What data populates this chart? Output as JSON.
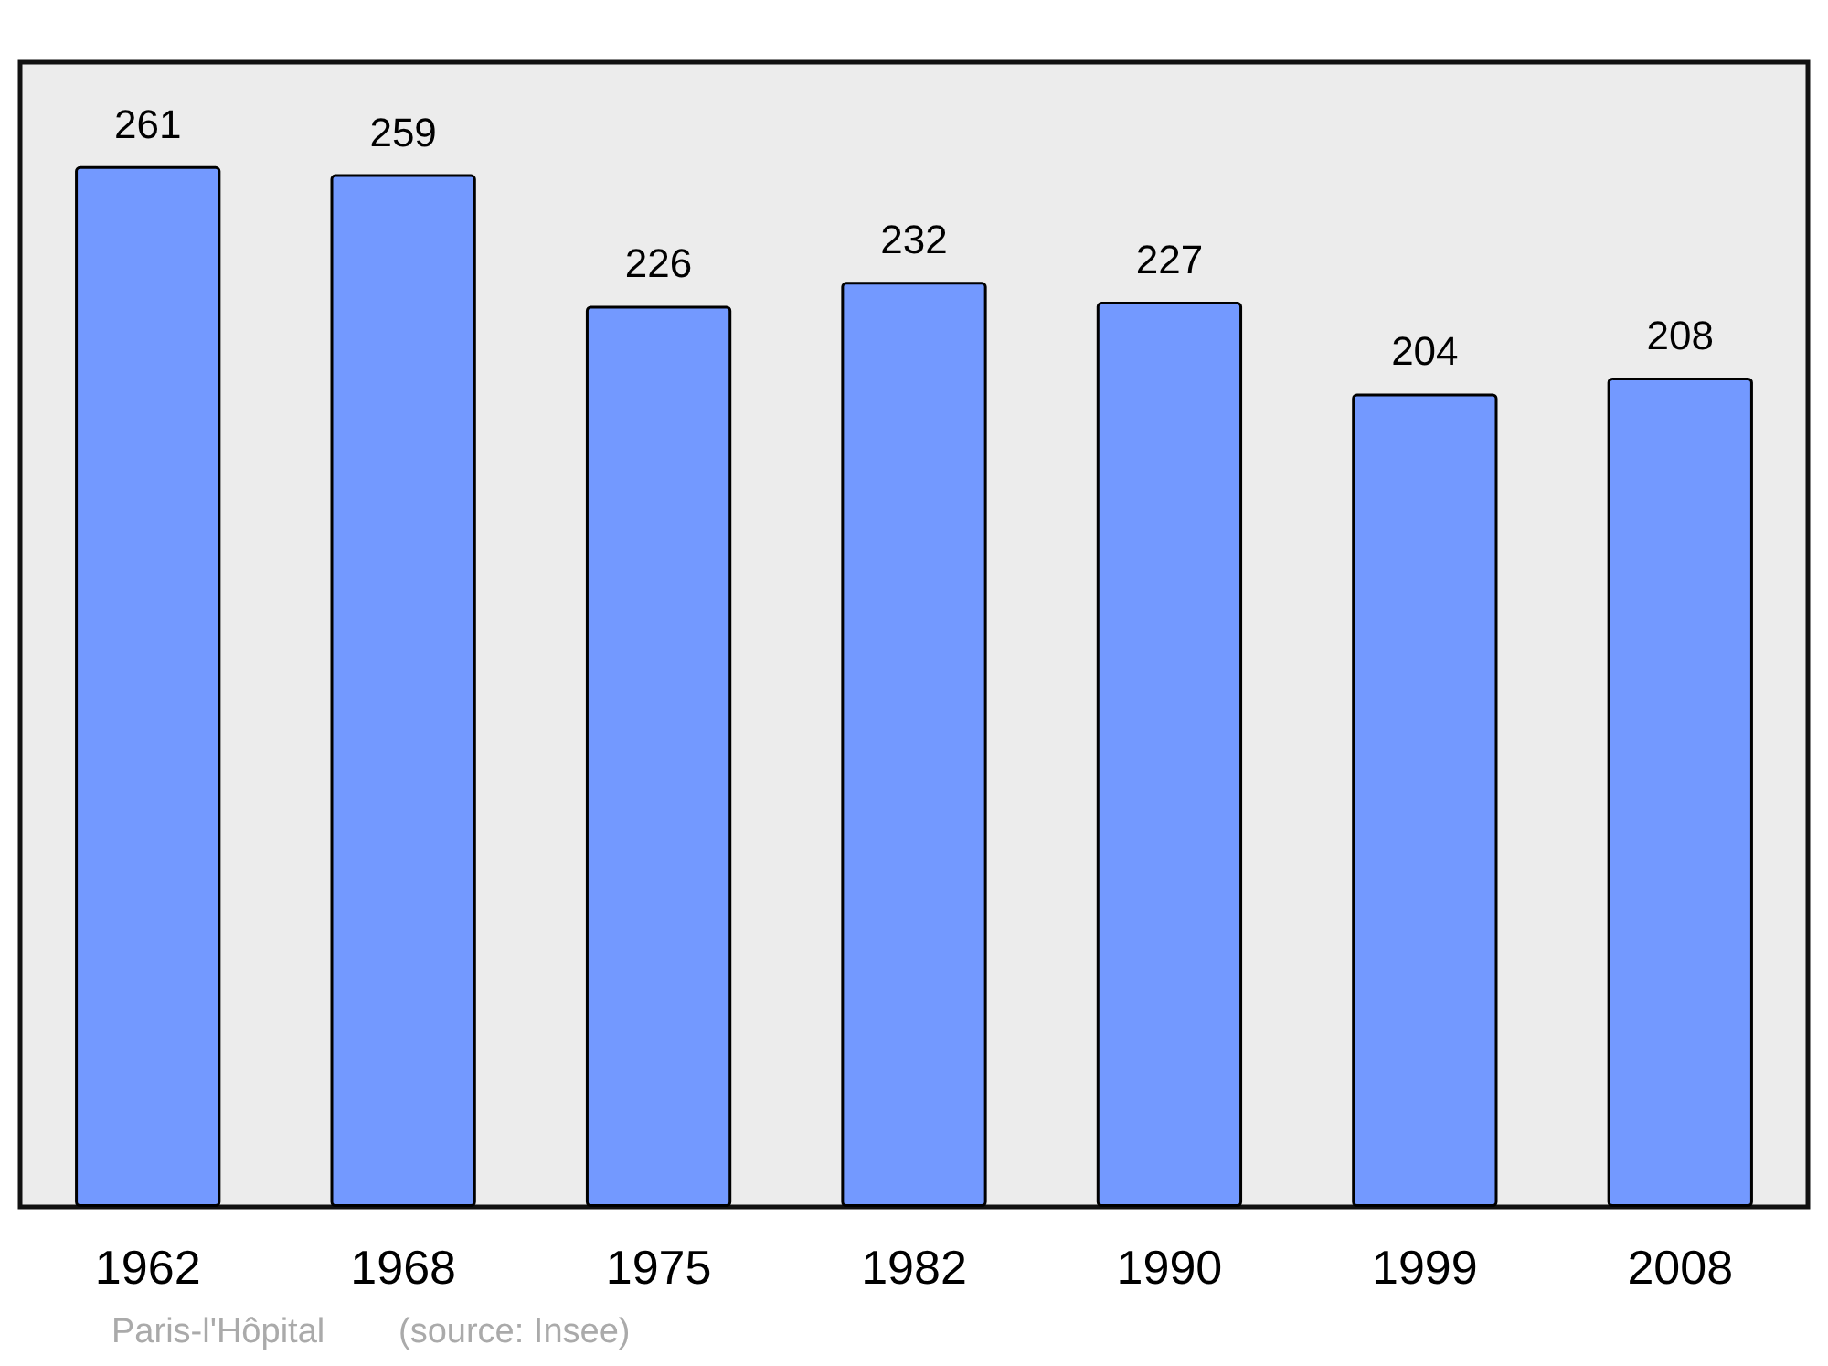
{
  "chart_data": {
    "type": "bar",
    "categories": [
      "1962",
      "1968",
      "1975",
      "1982",
      "1990",
      "1999",
      "2008"
    ],
    "values": [
      261,
      259,
      226,
      232,
      227,
      204,
      208
    ],
    "color": "#7399ff",
    "data_labels": true,
    "annotations": [
      "Paris-l'Hôpital",
      "(source: Insee)"
    ]
  }
}
